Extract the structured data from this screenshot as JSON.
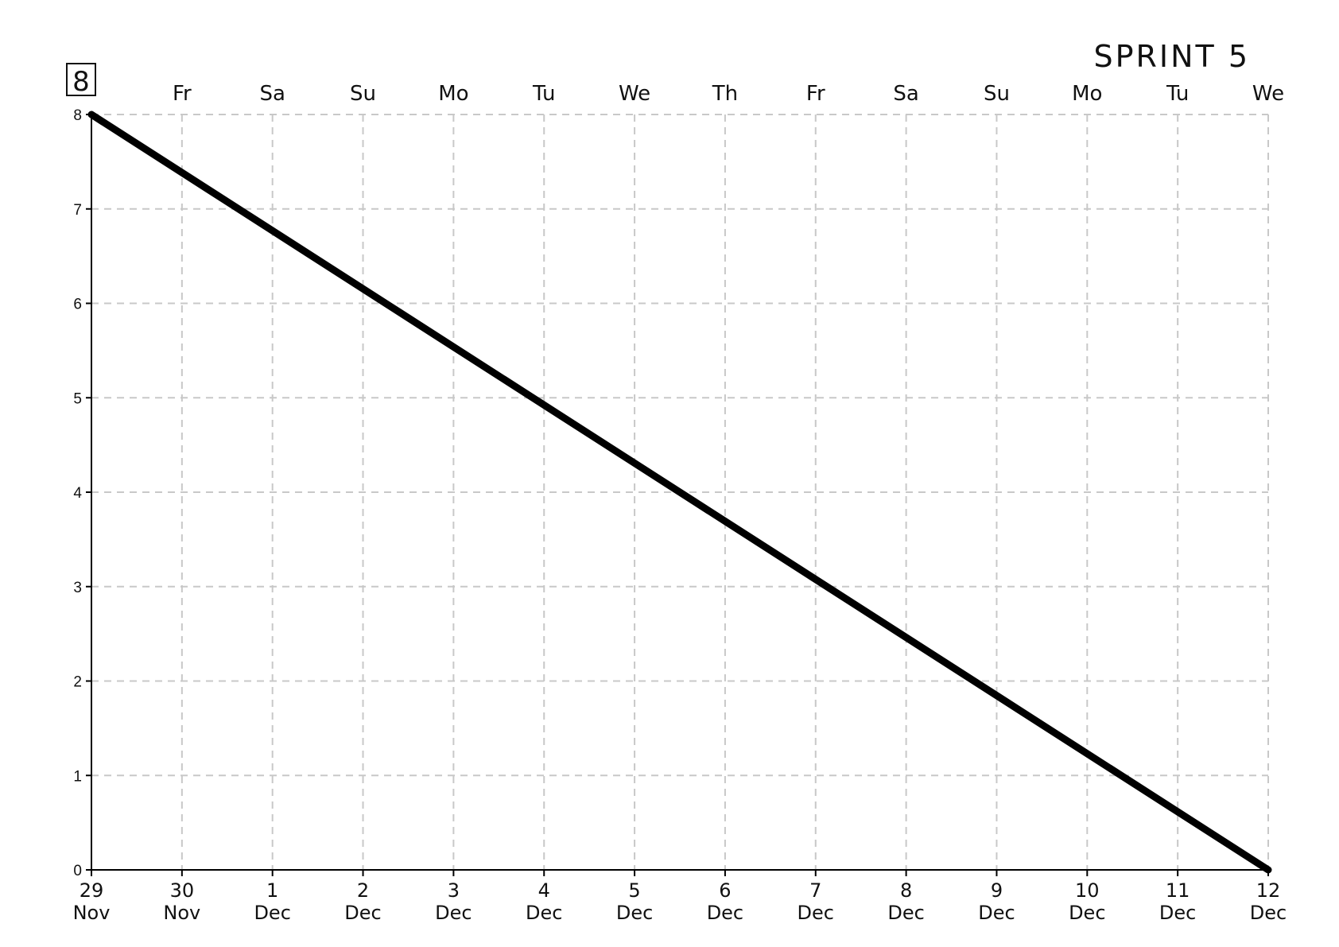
{
  "chart_data": {
    "type": "line",
    "title": "SPRINT 5",
    "total_badge": "8",
    "x_dates": [
      {
        "day": "29",
        "month": "Nov",
        "weekday": ""
      },
      {
        "day": "30",
        "month": "Nov",
        "weekday": "Fr"
      },
      {
        "day": "1",
        "month": "Dec",
        "weekday": "Sa"
      },
      {
        "day": "2",
        "month": "Dec",
        "weekday": "Su"
      },
      {
        "day": "3",
        "month": "Dec",
        "weekday": "Mo"
      },
      {
        "day": "4",
        "month": "Dec",
        "weekday": "Tu"
      },
      {
        "day": "5",
        "month": "Dec",
        "weekday": "We"
      },
      {
        "day": "6",
        "month": "Dec",
        "weekday": "Th"
      },
      {
        "day": "7",
        "month": "Dec",
        "weekday": "Fr"
      },
      {
        "day": "8",
        "month": "Dec",
        "weekday": "Sa"
      },
      {
        "day": "9",
        "month": "Dec",
        "weekday": "Su"
      },
      {
        "day": "10",
        "month": "Dec",
        "weekday": "Mo"
      },
      {
        "day": "11",
        "month": "Dec",
        "weekday": "Tu"
      },
      {
        "day": "12",
        "month": "Dec",
        "weekday": "We"
      }
    ],
    "y_ticks": [
      0,
      1,
      2,
      3,
      4,
      5,
      6,
      7,
      8
    ],
    "ylim": [
      0,
      8
    ],
    "grid": true,
    "series": [
      {
        "values": [
          {
            "x": "29 Nov",
            "y": 8
          },
          {
            "x": "12 Dec",
            "y": 0
          }
        ]
      }
    ],
    "colors": {
      "line": "#000000",
      "grid": "#c8c8c8",
      "axis": "#000000"
    }
  }
}
